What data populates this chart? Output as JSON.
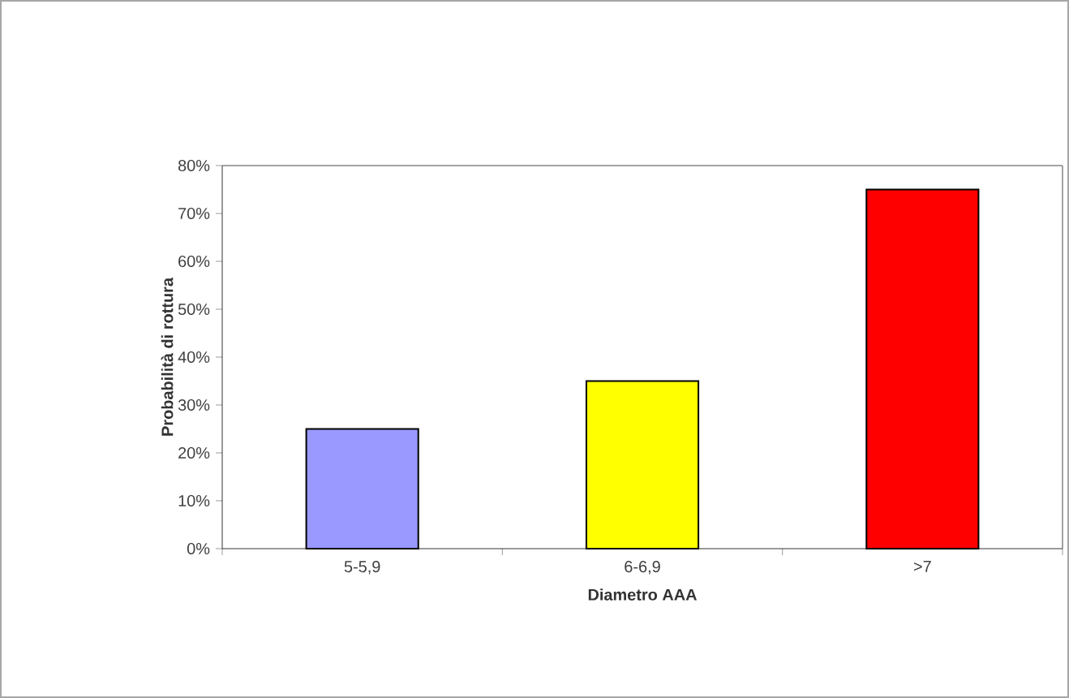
{
  "chart_data": {
    "type": "bar",
    "xlabel": "Diametro AAA",
    "ylabel": "Probabilità di rottura",
    "categories": [
      "5-5,9",
      "6-6,9",
      ">7"
    ],
    "values": [
      25,
      35,
      75
    ],
    "colors": [
      "#9999ff",
      "#ffff00",
      "#ff0000"
    ],
    "ylim": [
      0,
      80
    ],
    "yticks": [
      {
        "value": 0,
        "label": "0%"
      },
      {
        "value": 10,
        "label": "10%"
      },
      {
        "value": 20,
        "label": "20%"
      },
      {
        "value": 30,
        "label": "30%"
      },
      {
        "value": 40,
        "label": "40%"
      },
      {
        "value": 50,
        "label": "50%"
      },
      {
        "value": 60,
        "label": "60%"
      },
      {
        "value": 70,
        "label": "70%"
      },
      {
        "value": 80,
        "label": "80%"
      }
    ]
  }
}
